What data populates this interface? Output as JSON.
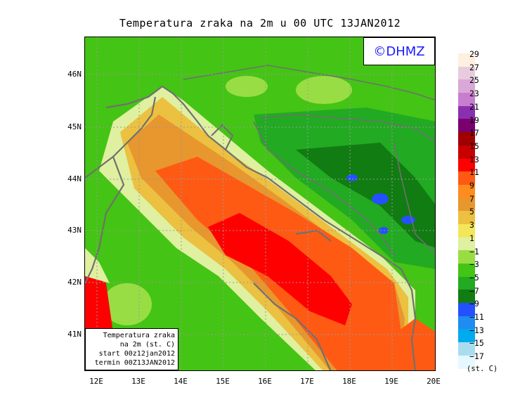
{
  "title": "Temperatura zraka na 2m u 00 UTC 13JAN2012",
  "watermark": "©DHMZ",
  "info_box": {
    "line1": "Temperatura zraka",
    "line2": "na 2m (st. C)",
    "line3": "start 00z12jan2012",
    "line4": "termin 00Z13JAN2012"
  },
  "lat_labels": [
    "46N",
    "45N",
    "44N",
    "43N",
    "42N",
    "41N"
  ],
  "lon_labels": [
    "12E",
    "13E",
    "14E",
    "15E",
    "16E",
    "17E",
    "18E",
    "19E",
    "20E"
  ],
  "legend": {
    "unit": "(st. C)",
    "labels": [
      "29",
      "27",
      "25",
      "23",
      "21",
      "19",
      "17",
      "15",
      "13",
      "11",
      "9",
      "7",
      "5",
      "3",
      "1",
      "−1",
      "−3",
      "−5",
      "−7",
      "−9",
      "−11",
      "−13",
      "−15",
      "−17"
    ],
    "colors": [
      "#fdf0e0",
      "#e8ccde",
      "#d9a8d6",
      "#c97dd0",
      "#8a2fb0",
      "#7a0070",
      "#a00000",
      "#c80000",
      "#ff0000",
      "#ff5a14",
      "#ff8c1e",
      "#e8962e",
      "#ecc040",
      "#f4e65a",
      "#dff0a0",
      "#99dd44",
      "#44c414",
      "#22aa22",
      "#117c11",
      "#2450ff",
      "#1e8cf0",
      "#00aaee",
      "#aadcf0",
      "#e6f8ff"
    ]
  }
}
